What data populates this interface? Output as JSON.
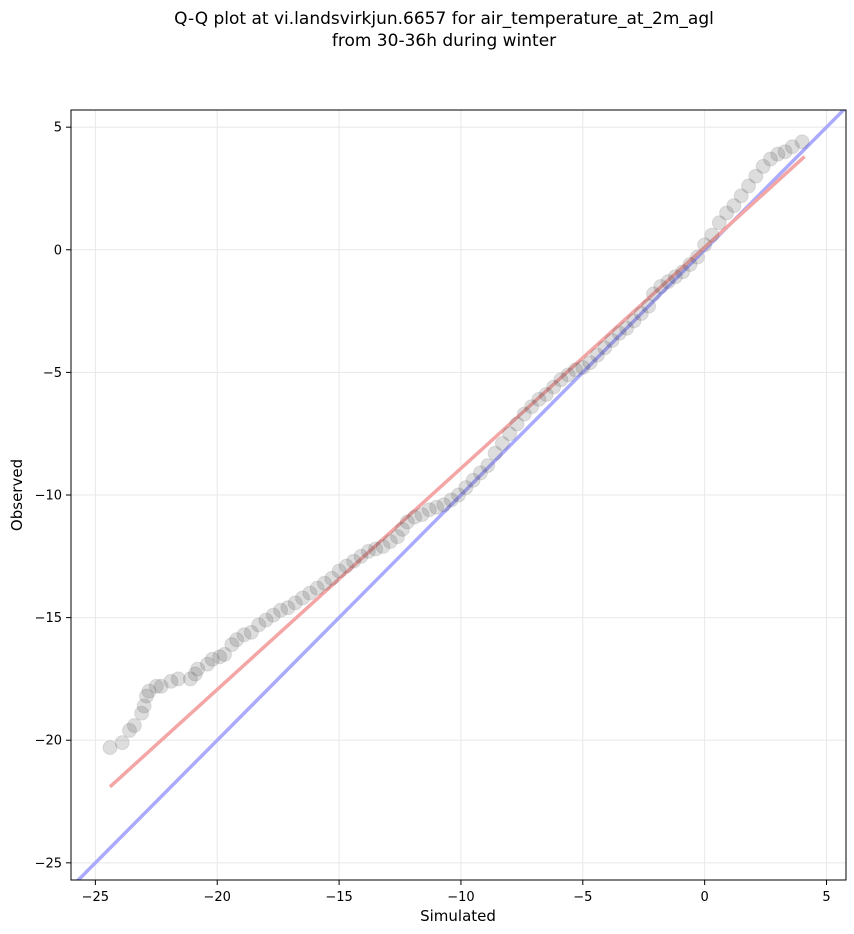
{
  "chart_data": {
    "type": "scatter",
    "title_line1": "Q-Q plot at vi.landsvirkjun.6657 for air_temperature_at_2m_agl",
    "title_line2": "from 30-36h during winter",
    "xlabel": "Simulated",
    "ylabel": "Observed",
    "xlim": [
      -26,
      5.8
    ],
    "ylim": [
      -25.7,
      5.7
    ],
    "xticks": [
      -25,
      -20,
      -15,
      -10,
      -5,
      0,
      5
    ],
    "yticks": [
      -25,
      -20,
      -15,
      -10,
      -5,
      0,
      5
    ],
    "xtick_labels": [
      "−25",
      "−20",
      "−15",
      "−10",
      "−5",
      "0",
      "5"
    ],
    "ytick_labels": [
      "−25",
      "−20",
      "−15",
      "−10",
      "−5",
      "0",
      "5"
    ],
    "grid": true,
    "identity_line": {
      "color": "#aaaaff",
      "from": [
        -26,
        -26
      ],
      "to": [
        5.8,
        5.8
      ]
    },
    "fit_line": {
      "color": "#f4a6a6",
      "from": [
        -24.4,
        -21.9
      ],
      "to": [
        4.1,
        3.8
      ]
    },
    "quantile_points": [
      {
        "x": -24.4,
        "y": -20.3
      },
      {
        "x": -23.9,
        "y": -20.1
      },
      {
        "x": -23.6,
        "y": -19.6
      },
      {
        "x": -23.4,
        "y": -19.4
      },
      {
        "x": -23.1,
        "y": -18.9
      },
      {
        "x": -23.0,
        "y": -18.6
      },
      {
        "x": -22.9,
        "y": -18.2
      },
      {
        "x": -22.8,
        "y": -18.0
      },
      {
        "x": -22.5,
        "y": -17.8
      },
      {
        "x": -22.3,
        "y": -17.8
      },
      {
        "x": -21.9,
        "y": -17.6
      },
      {
        "x": -21.6,
        "y": -17.5
      },
      {
        "x": -21.1,
        "y": -17.5
      },
      {
        "x": -20.9,
        "y": -17.3
      },
      {
        "x": -20.8,
        "y": -17.1
      },
      {
        "x": -20.4,
        "y": -16.9
      },
      {
        "x": -20.2,
        "y": -16.7
      },
      {
        "x": -19.9,
        "y": -16.6
      },
      {
        "x": -19.7,
        "y": -16.5
      },
      {
        "x": -19.4,
        "y": -16.1
      },
      {
        "x": -19.2,
        "y": -15.9
      },
      {
        "x": -18.9,
        "y": -15.7
      },
      {
        "x": -18.6,
        "y": -15.6
      },
      {
        "x": -18.3,
        "y": -15.3
      },
      {
        "x": -18.0,
        "y": -15.1
      },
      {
        "x": -17.7,
        "y": -14.9
      },
      {
        "x": -17.4,
        "y": -14.7
      },
      {
        "x": -17.1,
        "y": -14.6
      },
      {
        "x": -16.8,
        "y": -14.4
      },
      {
        "x": -16.5,
        "y": -14.2
      },
      {
        "x": -16.2,
        "y": -14.0
      },
      {
        "x": -15.9,
        "y": -13.8
      },
      {
        "x": -15.6,
        "y": -13.6
      },
      {
        "x": -15.3,
        "y": -13.4
      },
      {
        "x": -15.0,
        "y": -13.1
      },
      {
        "x": -14.7,
        "y": -12.9
      },
      {
        "x": -14.4,
        "y": -12.7
      },
      {
        "x": -14.1,
        "y": -12.5
      },
      {
        "x": -13.8,
        "y": -12.3
      },
      {
        "x": -13.5,
        "y": -12.2
      },
      {
        "x": -13.2,
        "y": -12.1
      },
      {
        "x": -12.9,
        "y": -11.9
      },
      {
        "x": -12.6,
        "y": -11.7
      },
      {
        "x": -12.4,
        "y": -11.4
      },
      {
        "x": -12.2,
        "y": -11.1
      },
      {
        "x": -11.9,
        "y": -10.9
      },
      {
        "x": -11.6,
        "y": -10.8
      },
      {
        "x": -11.3,
        "y": -10.6
      },
      {
        "x": -11.0,
        "y": -10.5
      },
      {
        "x": -10.7,
        "y": -10.4
      },
      {
        "x": -10.4,
        "y": -10.2
      },
      {
        "x": -10.1,
        "y": -10.0
      },
      {
        "x": -9.8,
        "y": -9.7
      },
      {
        "x": -9.5,
        "y": -9.4
      },
      {
        "x": -9.2,
        "y": -9.1
      },
      {
        "x": -8.9,
        "y": -8.8
      },
      {
        "x": -8.6,
        "y": -8.3
      },
      {
        "x": -8.3,
        "y": -7.9
      },
      {
        "x": -8.0,
        "y": -7.5
      },
      {
        "x": -7.7,
        "y": -7.1
      },
      {
        "x": -7.4,
        "y": -6.7
      },
      {
        "x": -7.1,
        "y": -6.4
      },
      {
        "x": -6.8,
        "y": -6.1
      },
      {
        "x": -6.5,
        "y": -5.9
      },
      {
        "x": -6.2,
        "y": -5.6
      },
      {
        "x": -5.9,
        "y": -5.3
      },
      {
        "x": -5.6,
        "y": -5.1
      },
      {
        "x": -5.3,
        "y": -4.9
      },
      {
        "x": -5.0,
        "y": -4.8
      },
      {
        "x": -4.7,
        "y": -4.6
      },
      {
        "x": -4.4,
        "y": -4.3
      },
      {
        "x": -4.1,
        "y": -4.0
      },
      {
        "x": -3.8,
        "y": -3.7
      },
      {
        "x": -3.5,
        "y": -3.4
      },
      {
        "x": -3.2,
        "y": -3.2
      },
      {
        "x": -2.9,
        "y": -2.9
      },
      {
        "x": -2.6,
        "y": -2.6
      },
      {
        "x": -2.3,
        "y": -2.3
      },
      {
        "x": -2.1,
        "y": -1.8
      },
      {
        "x": -1.8,
        "y": -1.5
      },
      {
        "x": -1.5,
        "y": -1.3
      },
      {
        "x": -1.2,
        "y": -1.1
      },
      {
        "x": -0.9,
        "y": -0.9
      },
      {
        "x": -0.6,
        "y": -0.6
      },
      {
        "x": -0.3,
        "y": -0.3
      },
      {
        "x": 0.0,
        "y": 0.2
      },
      {
        "x": 0.3,
        "y": 0.6
      },
      {
        "x": 0.6,
        "y": 1.1
      },
      {
        "x": 0.9,
        "y": 1.5
      },
      {
        "x": 1.2,
        "y": 1.8
      },
      {
        "x": 1.5,
        "y": 2.2
      },
      {
        "x": 1.8,
        "y": 2.6
      },
      {
        "x": 2.1,
        "y": 3.0
      },
      {
        "x": 2.4,
        "y": 3.4
      },
      {
        "x": 2.7,
        "y": 3.7
      },
      {
        "x": 3.0,
        "y": 3.9
      },
      {
        "x": 3.3,
        "y": 4.0
      },
      {
        "x": 3.6,
        "y": 4.2
      },
      {
        "x": 4.0,
        "y": 4.4
      }
    ]
  }
}
